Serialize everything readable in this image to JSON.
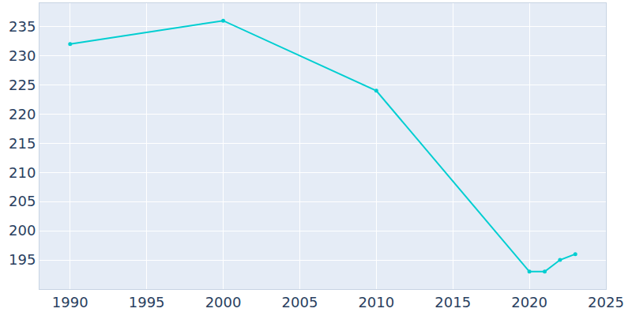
{
  "chart_data": {
    "type": "line",
    "x": [
      1990,
      2000,
      2010,
      2020,
      2021,
      2022,
      2023
    ],
    "values": [
      232,
      236,
      224,
      193,
      193,
      195,
      196
    ],
    "color": "#00ced1",
    "marker": "circle",
    "xlim": [
      1988,
      2025
    ],
    "xticks": [
      1990,
      1995,
      2000,
      2005,
      2010,
      2015,
      2020,
      2025
    ],
    "ylim": [
      190,
      239
    ],
    "yticks": [
      195,
      200,
      205,
      210,
      215,
      220,
      225,
      230,
      235
    ],
    "grid": true
  }
}
